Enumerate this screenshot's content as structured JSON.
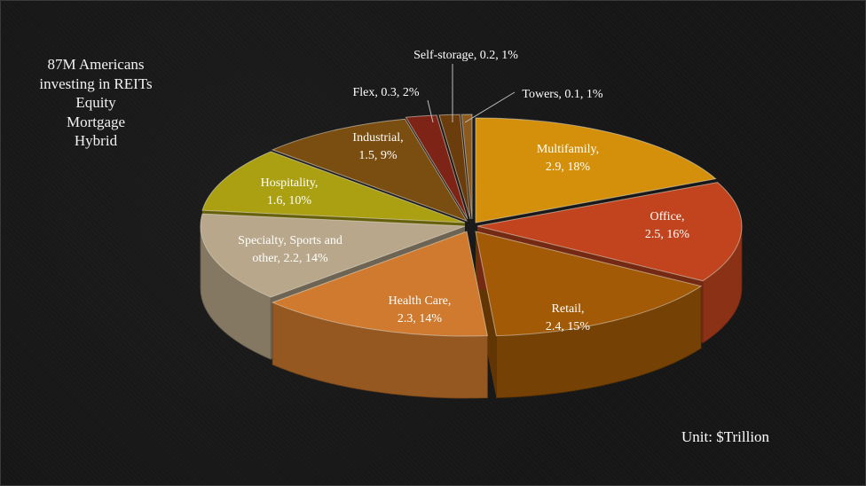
{
  "notes": [
    "87M Americans",
    "investing in REITs",
    "Equity",
    "Mortgage",
    "Hybrid"
  ],
  "unit_label": "Unit: $Trillion",
  "chart_data": {
    "type": "pie",
    "style": "3d-exploded",
    "unit": "$Trillion",
    "slices": [
      {
        "name": "Multifamily",
        "value": 2.9,
        "percent": 18,
        "color": "#d4900a",
        "label_lines": [
          "Multifamily,",
          "2.9, 18%"
        ]
      },
      {
        "name": "Office",
        "value": 2.5,
        "percent": 16,
        "color": "#c1441f",
        "label_lines": [
          "Office,",
          "2.5, 16%"
        ]
      },
      {
        "name": "Retail",
        "value": 2.4,
        "percent": 15,
        "color": "#a35a06",
        "label_lines": [
          "Retail,",
          "2.4, 15%"
        ]
      },
      {
        "name": "Health Care",
        "value": 2.3,
        "percent": 14,
        "color": "#cf7a2e",
        "label_lines": [
          "Health Care,",
          "2.3, 14%"
        ]
      },
      {
        "name": "Specialty, Sports and other",
        "value": 2.2,
        "percent": 14,
        "color": "#b8a78a",
        "label_lines": [
          "Specialty, Sports and",
          "other, 2.2, 14%"
        ]
      },
      {
        "name": "Hospitality",
        "value": 1.6,
        "percent": 10,
        "color": "#aaa012",
        "label_lines": [
          "Hospitality,",
          "1.6, 10%"
        ]
      },
      {
        "name": "Industrial",
        "value": 1.5,
        "percent": 9,
        "color": "#7a4e10",
        "label_lines": [
          "Industrial,",
          "1.5, 9%"
        ]
      },
      {
        "name": "Flex",
        "value": 0.3,
        "percent": 2,
        "color": "#7e2416",
        "label_lines": [
          "Flex, 0.3, 2%"
        ]
      },
      {
        "name": "Self-storage",
        "value": 0.2,
        "percent": 1,
        "color": "#6b3c0c",
        "label_lines": [
          "Self-storage, 0.2, 1%"
        ]
      },
      {
        "name": "Towers",
        "value": 0.1,
        "percent": 1,
        "color": "#8c5a1e",
        "label_lines": [
          "Towers, 0.1, 1%"
        ]
      }
    ]
  }
}
